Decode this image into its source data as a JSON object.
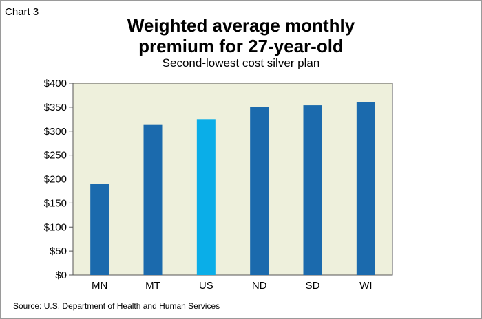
{
  "header": {
    "chart_label": "Chart 3",
    "title_line1": "Weighted average monthly",
    "title_line2": "premium for 27-year-old",
    "subtitle": "Second-lowest cost silver plan"
  },
  "footer": {
    "source": "Source: U.S. Department of Health and Human Services"
  },
  "colors": {
    "plot_background": "#eef0dc",
    "bar_default": "#1b6aad",
    "bar_highlight": "#0aaee8",
    "axis": "#555555"
  },
  "chart_data": {
    "type": "bar",
    "categories": [
      "MN",
      "MT",
      "US",
      "ND",
      "SD",
      "WI"
    ],
    "values": [
      190,
      313,
      325,
      350,
      354,
      360
    ],
    "highlight": [
      "US"
    ],
    "title": "Weighted average monthly premium for 27-year-old",
    "subtitle": "Second-lowest cost silver plan",
    "xlabel": "",
    "ylabel": "",
    "ylim": [
      0,
      400
    ],
    "yticks": [
      0,
      50,
      100,
      150,
      200,
      250,
      300,
      350,
      400
    ],
    "ytick_labels": [
      "$0",
      "$50",
      "$100",
      "$150",
      "$200",
      "$250",
      "$300",
      "$350",
      "$400"
    ],
    "grid": false,
    "legend": "none"
  }
}
